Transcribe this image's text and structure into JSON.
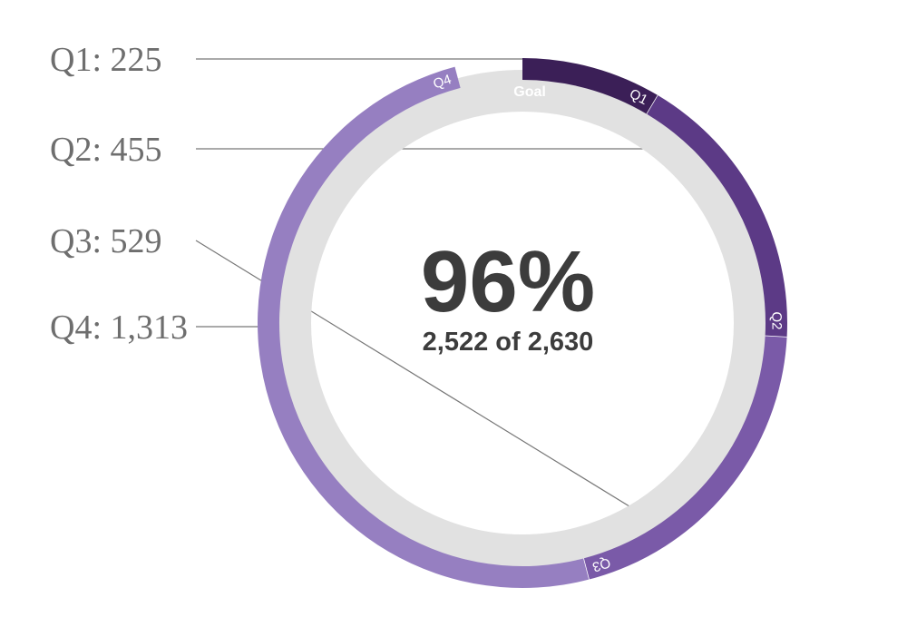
{
  "chart_data": {
    "type": "radial-progress",
    "goal": 2630,
    "total": 2522,
    "goal_label": "Goal",
    "center": {
      "percent_text": "96%",
      "summary_text": "2,522 of 2,630"
    },
    "series": [
      {
        "name": "Q1",
        "value": 225,
        "label": "Q1: 225",
        "color": "#3b1f57"
      },
      {
        "name": "Q2",
        "value": 455,
        "label": "Q2: 455",
        "color": "#5c3a86"
      },
      {
        "name": "Q3",
        "value": 529,
        "label": "Q3: 529",
        "color": "#7a5aa8"
      },
      {
        "name": "Q4",
        "value": 1313,
        "label": "Q4: 1,313",
        "color": "#967fc1"
      }
    ],
    "track_color": "#e1e1e1",
    "leader_color": "#777777"
  }
}
